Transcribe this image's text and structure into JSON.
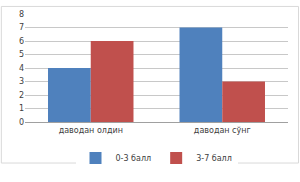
{
  "chart_data": {
    "type": "bar",
    "categories": [
      "даводан олдин",
      "даводан сўнг"
    ],
    "series": [
      {
        "name": "0-3 балл",
        "color": "#4f81bd",
        "values": [
          4,
          7
        ]
      },
      {
        "name": "3-7 балл",
        "color": "#c0504d",
        "values": [
          6,
          3
        ]
      }
    ],
    "ylim": [
      0,
      8
    ],
    "yticks": [
      0,
      1,
      2,
      3,
      4,
      5,
      6,
      7,
      8
    ],
    "grid": true,
    "legend": "bottom"
  }
}
